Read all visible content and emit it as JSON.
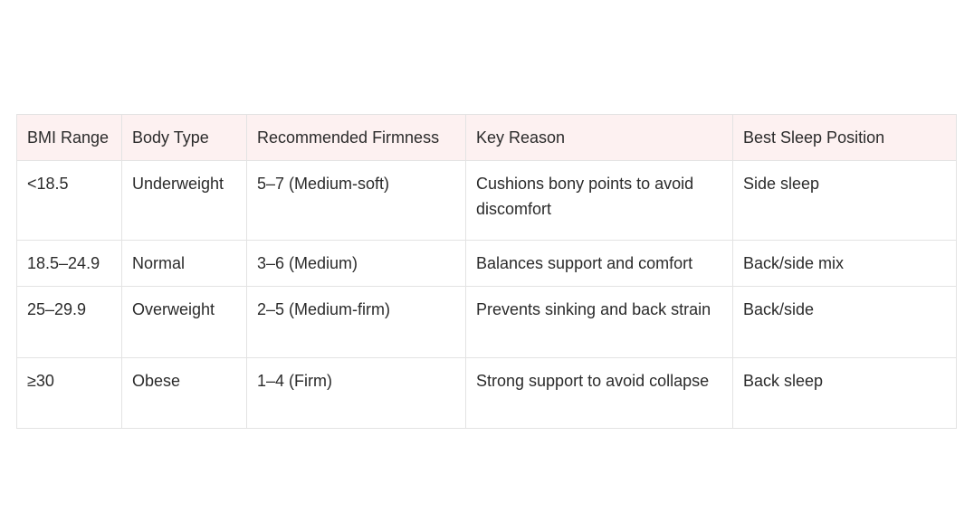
{
  "table": {
    "headers": [
      "BMI Range",
      "Body Type",
      "Recommended Firmness",
      "Key Reason",
      "Best Sleep Position"
    ],
    "rows": [
      [
        "<18.5",
        "Underweight",
        "5–7 (Medium-soft)",
        "Cushions bony points to avoid discomfort",
        "Side sleep"
      ],
      [
        "18.5–24.9",
        "Normal",
        "3–6 (Medium)",
        "Balances support and comfort",
        "Back/side mix"
      ],
      [
        "25–29.9",
        "Overweight",
        "2–5 (Medium-firm)",
        "Prevents sinking and back strain",
        "Back/side"
      ],
      [
        "≥30",
        "Obese",
        "1–4 (Firm)",
        "Strong support to avoid collapse",
        "Back sleep"
      ]
    ]
  },
  "colors": {
    "header_bg": "#fdf1f1",
    "border": "#e3e3e3",
    "text": "#2b2b2b"
  }
}
